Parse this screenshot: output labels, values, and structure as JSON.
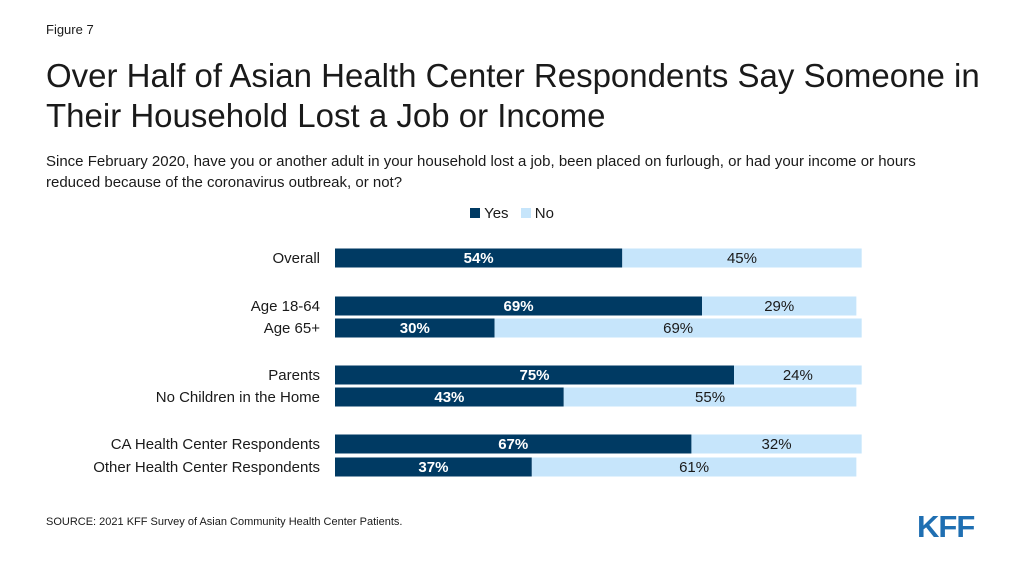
{
  "figure_label": "Figure 7",
  "title": "Over Half of Asian Health Center Respondents Say Someone in Their Household Lost a Job or Income",
  "subtitle": "Since February 2020, have you or another adult in your household lost a job, been placed on furlough, or had your income or hours reduced because of the coronavirus outbreak, or not?",
  "source": "SOURCE: 2021 KFF Survey of Asian Community Health Center Patients.",
  "logo_text": "KFF",
  "colors": {
    "yes": "#003a63",
    "no": "#c6e5fb",
    "logo": "#1f6fb2"
  },
  "chart_data": {
    "type": "bar",
    "orientation": "horizontal",
    "stacked": true,
    "categories": [
      "Overall",
      "Age 18-64",
      "Age 65+",
      "Parents",
      "No Children in the Home",
      "CA Health Center Respondents",
      "Other Health Center Respondents"
    ],
    "series": [
      {
        "name": "Yes",
        "values": [
          54,
          69,
          30,
          75,
          43,
          67,
          37
        ]
      },
      {
        "name": "No",
        "values": [
          45,
          29,
          69,
          24,
          55,
          32,
          61
        ]
      }
    ],
    "data_labels": {
      "Yes": [
        "54%",
        "69%",
        "30%",
        "75%",
        "43%",
        "67%",
        "37%"
      ],
      "No": [
        "45%",
        "29%",
        "69%",
        "24%",
        "55%",
        "32%",
        "61%"
      ]
    },
    "xlim": [
      0,
      100
    ],
    "grid": false,
    "legend_position": "top-center"
  }
}
